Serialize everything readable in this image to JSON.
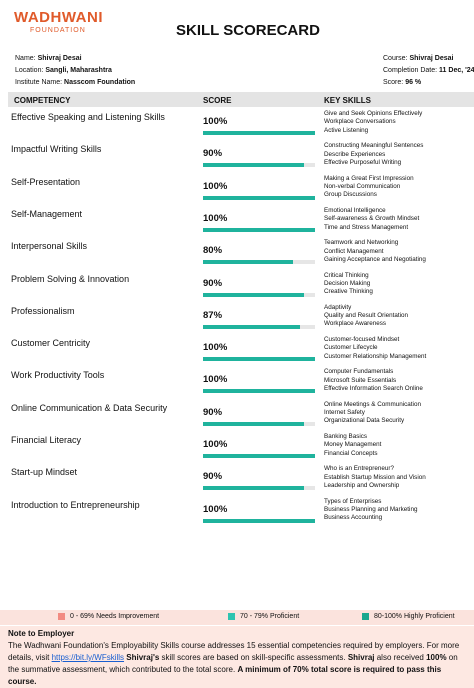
{
  "logo": {
    "name": "WADHWANI",
    "sub": "FOUNDATION"
  },
  "title": "SKILL SCORECARD",
  "info_left": [
    {
      "label": "Name:",
      "value": "Shivraj Desai"
    },
    {
      "label": "Location:",
      "value": "Sangli, Maharashtra"
    },
    {
      "label": "Institute Name:",
      "value": "Nasscom Foundation"
    }
  ],
  "info_right": [
    {
      "label": "Course:",
      "value": "Shivraj Desai"
    },
    {
      "label": "Completion Date:",
      "value": "11 Dec, '24"
    },
    {
      "label": "Score:",
      "value": "96 %"
    }
  ],
  "table": {
    "headers": [
      "COMPETENCY",
      "SCORE",
      "KEY SKILLS"
    ],
    "score_max": 100,
    "rows": [
      {
        "name": "Effective Speaking and Listening Skills",
        "score": 100,
        "score_label": "100%",
        "skills": [
          "Give and Seek Opinions Effectively",
          "Workplace Conversations",
          "Active Listening"
        ]
      },
      {
        "name": "Impactful Writing Skills",
        "score": 90,
        "score_label": "90%",
        "skills": [
          "Constructing Meaningful Sentences",
          "Describe Experiences",
          "Effective Purposeful Writing"
        ]
      },
      {
        "name": "Self-Presentation",
        "score": 100,
        "score_label": "100%",
        "skills": [
          "Making a Great First Impression",
          "Non-verbal Communication",
          "Group Discussions"
        ]
      },
      {
        "name": "Self-Management",
        "score": 100,
        "score_label": "100%",
        "skills": [
          "Emotional Intelligence",
          "Self-awareness & Growth Mindset",
          "Time and Stress Management"
        ]
      },
      {
        "name": "Interpersonal Skills",
        "score": 80,
        "score_label": "80%",
        "skills": [
          "Teamwork and Networking",
          "Conflict Management",
          "Gaining Acceptance and Negotiating"
        ]
      },
      {
        "name": "Problem Solving & Innovation",
        "score": 90,
        "score_label": "90%",
        "skills": [
          "Critical Thinking",
          "Decision Making",
          "Creative Thinking"
        ]
      },
      {
        "name": "Professionalism",
        "score": 87,
        "score_label": "87%",
        "skills": [
          "Adaptivity",
          "Quality and Result Orientation",
          "Workplace Awareness"
        ]
      },
      {
        "name": "Customer Centricity",
        "score": 100,
        "score_label": "100%",
        "skills": [
          "Customer-focused Mindset",
          "Customer Lifecycle",
          "Customer Relationship Management"
        ]
      },
      {
        "name": "Work Productivity Tools",
        "score": 100,
        "score_label": "100%",
        "skills": [
          "Computer Fundamentals",
          "Microsoft Suite Essentials",
          "Effective Information Search Online"
        ]
      },
      {
        "name": "Online Communication & Data Security",
        "score": 90,
        "score_label": "90%",
        "skills": [
          "Online Meetings & Communication",
          "Internet Safety",
          "Organizational Data Security"
        ]
      },
      {
        "name": "Financial Literacy",
        "score": 100,
        "score_label": "100%",
        "skills": [
          "Banking Basics",
          "Money Management",
          "Financial Concepts"
        ]
      },
      {
        "name": "Start-up Mindset",
        "score": 90,
        "score_label": "90%",
        "skills": [
          "Who is an Entrepreneur?",
          "Establish Startup Mission and Vision",
          "Leadership and Ownership"
        ]
      },
      {
        "name": "Introduction to Entrepreneurship",
        "score": 100,
        "score_label": "100%",
        "skills": [
          "Types of Enterprises",
          "Business Planning and Marketing",
          "Business Accounting"
        ]
      }
    ]
  },
  "legend": [
    {
      "range": "0 - 69%",
      "label": "Needs Improvement",
      "color": "#f28b82"
    },
    {
      "range": "70 - 79%",
      "label": "Proficient",
      "color": "#2ec4b0"
    },
    {
      "range": "80-100%",
      "label": "Highly Proficient",
      "color": "#1aa88f"
    }
  ],
  "note": {
    "title": "Note to Employer",
    "segments": [
      {
        "text": "The Wadhwani Foundation's Employability Skills course addresses 15 essential competencies required by employers. For more details, visit ",
        "style": "plain"
      },
      {
        "text": "https://bit.ly/WFskills",
        "style": "link"
      },
      {
        "text": " ",
        "style": "plain"
      },
      {
        "text": "Shivraj's",
        "style": "bold"
      },
      {
        "text": " skill scores are based on skill-specific assessments. ",
        "style": "plain"
      },
      {
        "text": "Shivraj",
        "style": "bold"
      },
      {
        "text": " also received ",
        "style": "plain"
      },
      {
        "text": "100%",
        "style": "bold"
      },
      {
        "text": " on the summative assessment, which contributed to the total score.  ",
        "style": "plain"
      },
      {
        "text": "A minimum of 70% total score is required to pass this course.",
        "style": "bold"
      }
    ]
  }
}
